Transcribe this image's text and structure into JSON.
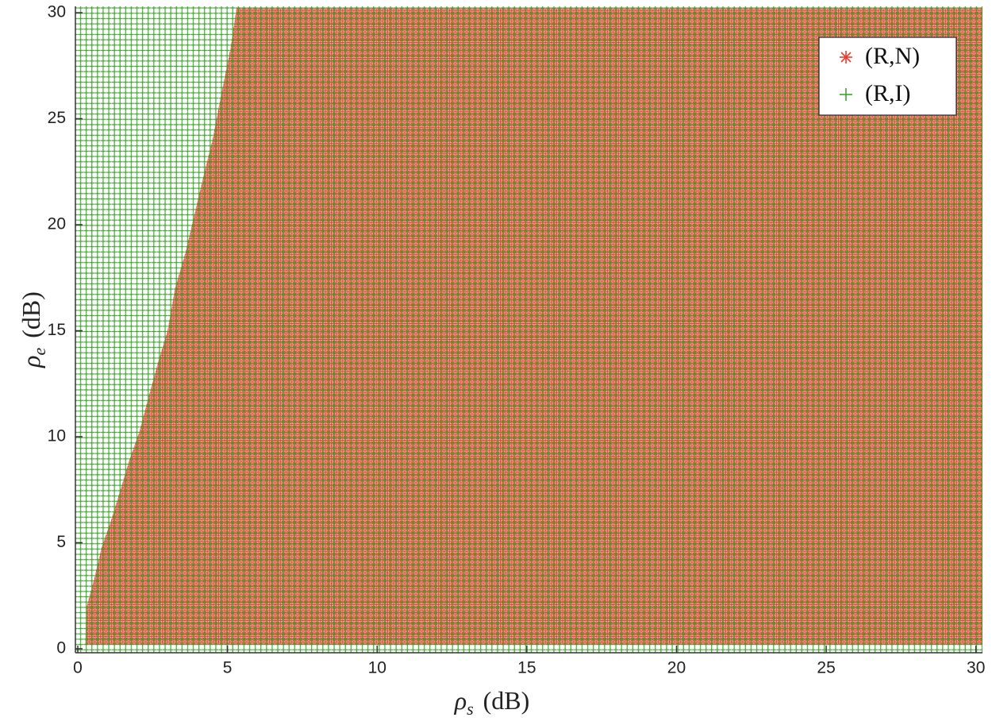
{
  "chart_data": {
    "type": "region",
    "xlabel": {
      "symbol": "ρ",
      "subscript": "s",
      "unit": "(dB)"
    },
    "ylabel": {
      "symbol": "ρ",
      "subscript": "e",
      "unit": "(dB)"
    },
    "boundary": {
      "x": [
        0.25,
        0.3,
        0.55,
        0.8,
        1.1,
        1.45,
        1.7,
        2.05,
        2.35,
        2.7,
        3.0,
        3.25,
        3.6,
        3.9,
        4.2,
        4.5,
        4.8,
        5.1,
        5.3
      ],
      "y": [
        0.2,
        2,
        3.3,
        4.8,
        6,
        7.6,
        8.8,
        10.2,
        11.8,
        13.6,
        15,
        17,
        18.7,
        20.5,
        22.3,
        24,
        26.2,
        28.3,
        30.2
      ]
    },
    "series": [
      {
        "name": "(R,N)",
        "color": "#ea3b2c",
        "marker": "*",
        "side": "right"
      },
      {
        "name": "(R,I)",
        "color": "#3da52c",
        "marker": "+",
        "side": "left"
      }
    ],
    "xlim": [
      -0.08,
      30.22
    ],
    "ylim": [
      -0.19,
      30.3
    ],
    "xticks": [
      0,
      5,
      10,
      15,
      20,
      25,
      30
    ],
    "yticks": [
      0,
      5,
      10,
      15,
      20,
      25,
      30
    ],
    "legend": "upper right"
  }
}
